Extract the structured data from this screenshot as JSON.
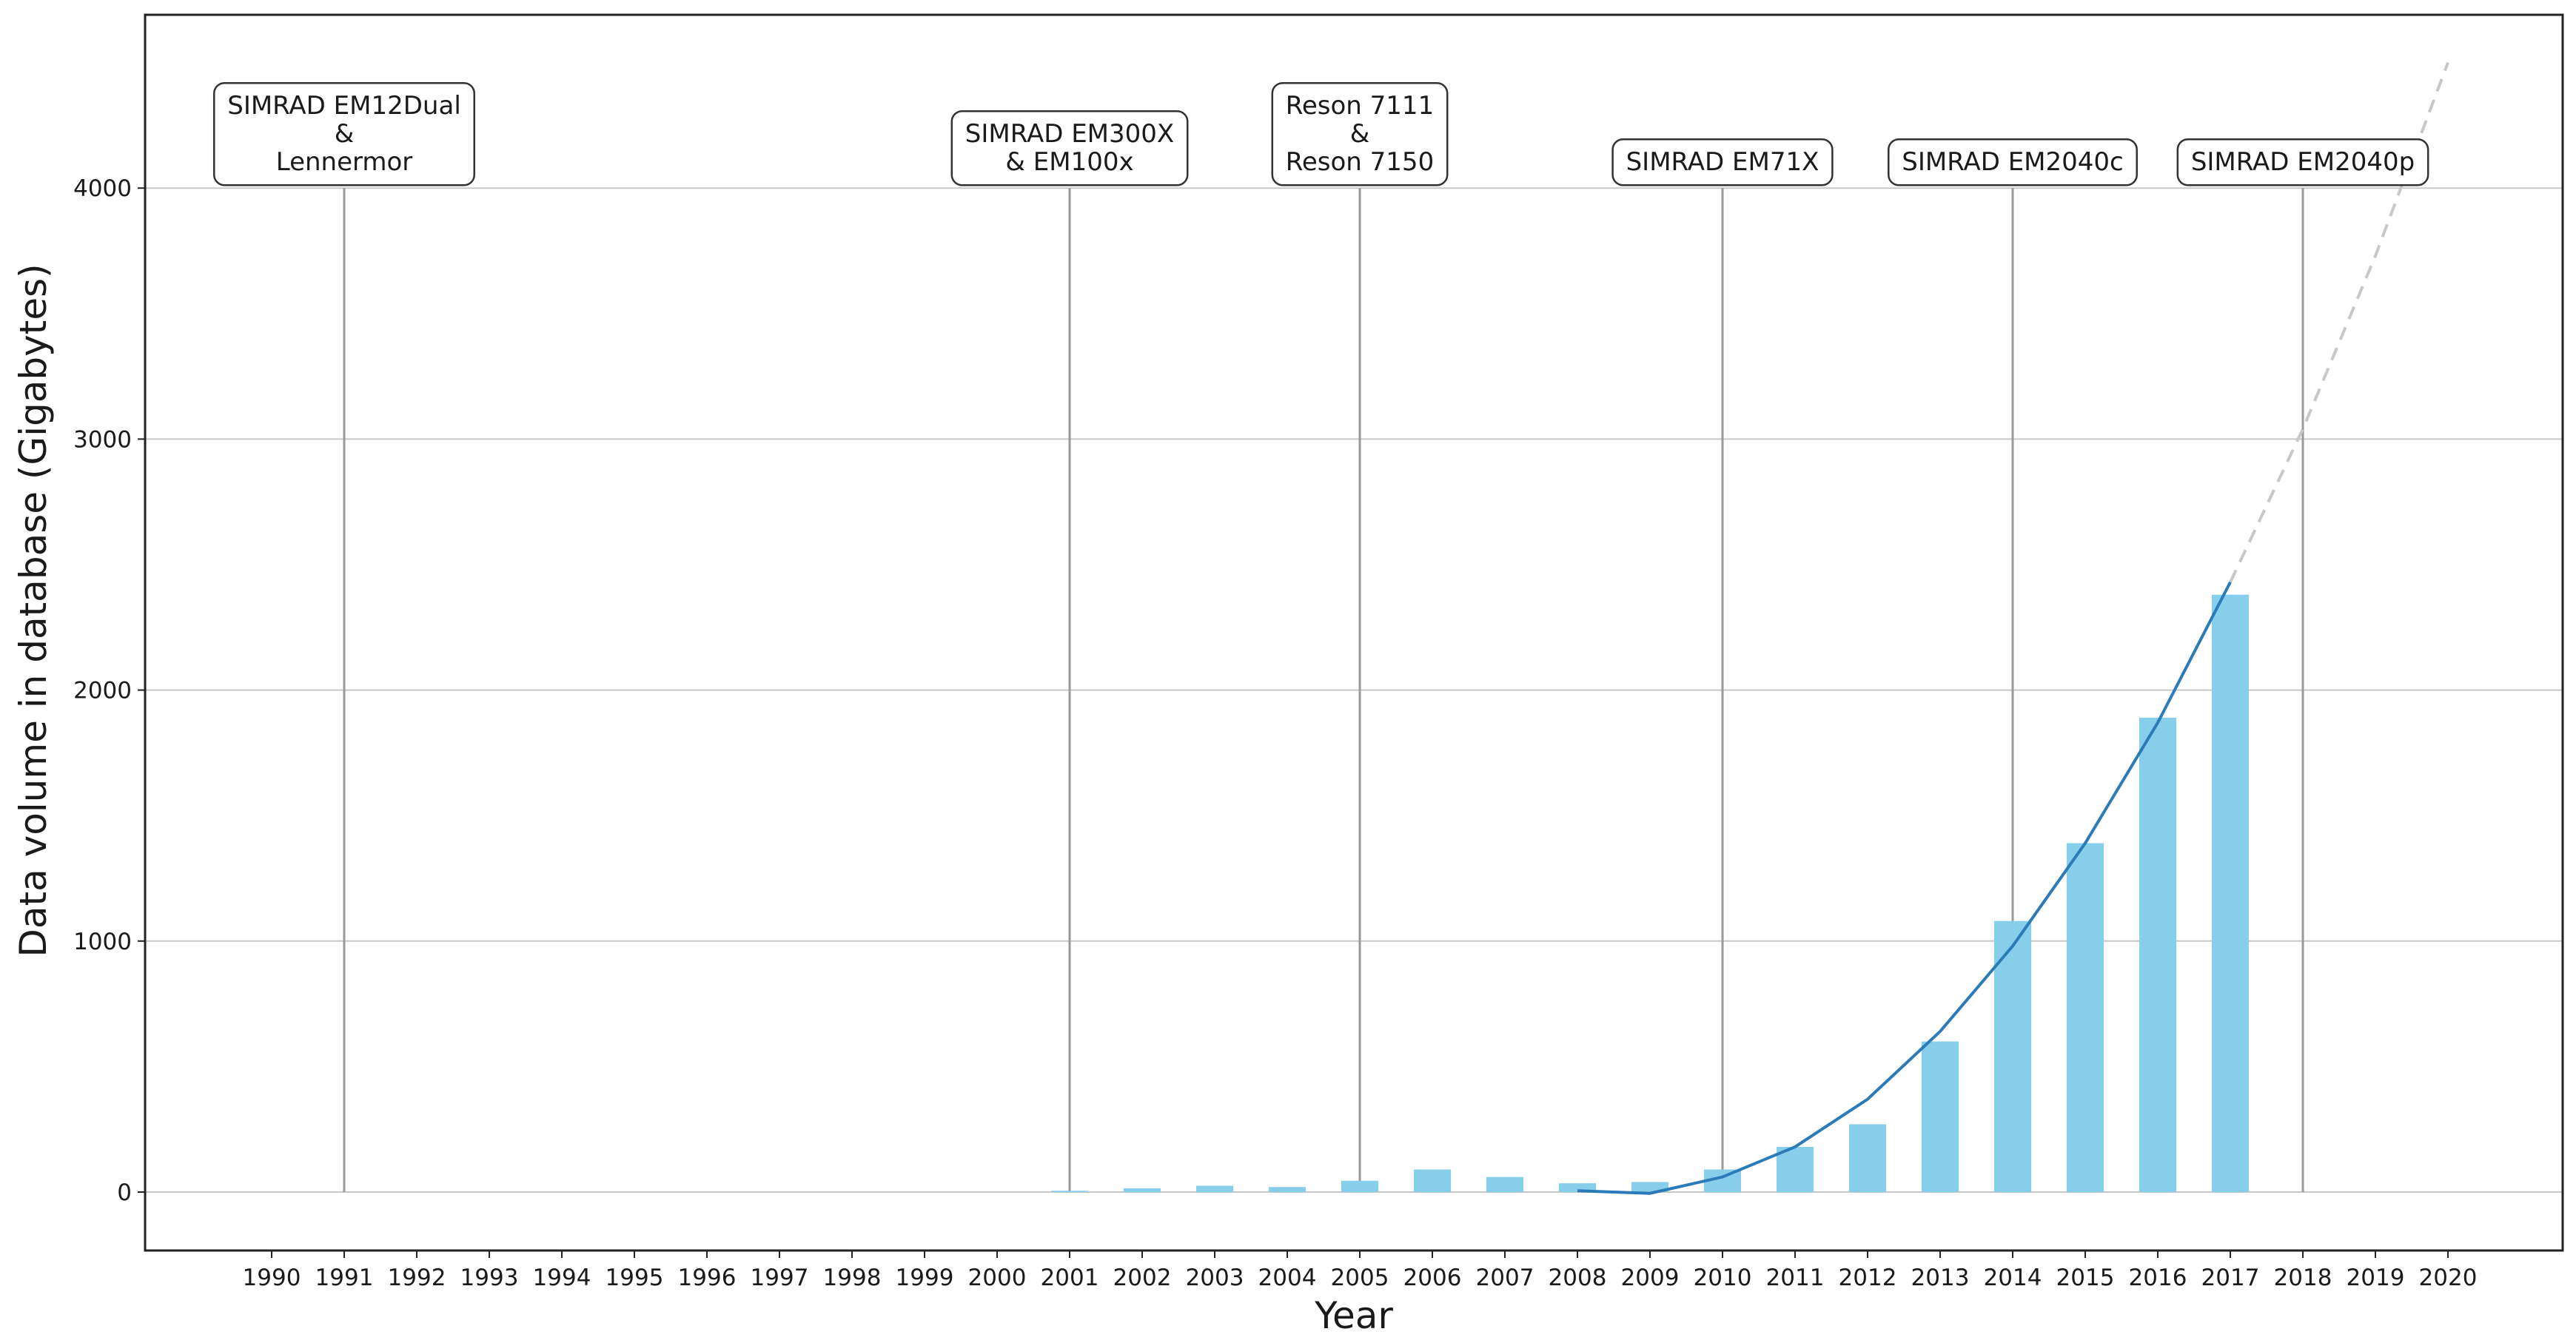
{
  "chart_data": {
    "type": "bar",
    "title": "",
    "xlabel": "Year",
    "ylabel": "Data volume in database (Gigabytes)",
    "ylim": [
      -230,
      4700
    ],
    "yticks": [
      0,
      1000,
      2000,
      3000,
      4000
    ],
    "grid": "horizontal",
    "categories": [
      "1990",
      "1991",
      "1992",
      "1993",
      "1994",
      "1995",
      "1996",
      "1997",
      "1998",
      "1999",
      "2000",
      "2001",
      "2002",
      "2003",
      "2004",
      "2005",
      "2006",
      "2007",
      "2008",
      "2009",
      "2010",
      "2011",
      "2012",
      "2013",
      "2014",
      "2015",
      "2016",
      "2017",
      "2018",
      "2019",
      "2020"
    ],
    "bars": {
      "color": "#87ceeb",
      "values": [
        0,
        0,
        0,
        0,
        0,
        0,
        0,
        0,
        0,
        0,
        0,
        5,
        15,
        25,
        20,
        45,
        90,
        60,
        35,
        40,
        90,
        180,
        270,
        600,
        1080,
        1390,
        1890,
        2380,
        0,
        0,
        0
      ]
    },
    "trend": {
      "color": "#2b7bb9",
      "x": [
        2008,
        2009,
        2010,
        2011,
        2012,
        2013,
        2014,
        2015,
        2016,
        2017
      ],
      "y": [
        5,
        -5,
        60,
        180,
        370,
        640,
        980,
        1390,
        1870,
        2430
      ]
    },
    "projection": {
      "color": "#c8c8c8",
      "style": "dashed",
      "x": [
        2017,
        2018,
        2019,
        2020
      ],
      "y": [
        2430,
        3040,
        3730,
        4500
      ]
    },
    "events": [
      {
        "year": 1991,
        "label": [
          "SIMRAD EM12Dual",
          "&",
          "Lennermor"
        ]
      },
      {
        "year": 2001,
        "label": [
          "SIMRAD EM300X",
          "&  EM100x"
        ]
      },
      {
        "year": 2005,
        "label": [
          "Reson 7111",
          "&",
          "Reson 7150"
        ]
      },
      {
        "year": 2010,
        "label": [
          "SIMRAD EM71X"
        ]
      },
      {
        "year": 2014,
        "label": [
          "SIMRAD EM2040c"
        ]
      },
      {
        "year": 2018,
        "label": [
          "SIMRAD EM2040p"
        ]
      }
    ]
  }
}
